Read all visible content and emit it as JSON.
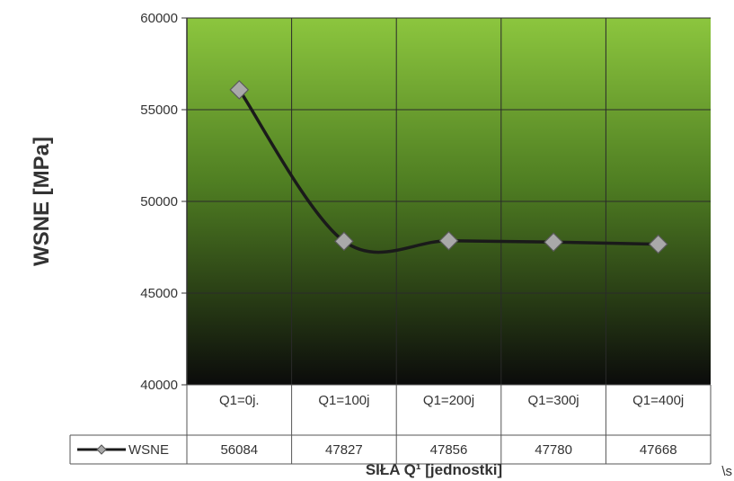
{
  "chart_data": {
    "type": "line",
    "categories": [
      "Q1=0j.",
      "Q1=100j",
      "Q1=200j",
      "Q1=300j",
      "Q1=400j"
    ],
    "series": [
      {
        "name": "WSNE",
        "values": [
          56084,
          47827,
          47856,
          47780,
          47668
        ]
      }
    ],
    "ylabel": "WSNE [MPa]",
    "xlabel": "SIŁA Q¹ [jednostki]",
    "ylim": [
      40000,
      60000
    ],
    "yticks": [
      40000,
      45000,
      50000,
      55000,
      60000
    ],
    "grid": true,
    "data_table": true,
    "legend": "data-table-row",
    "colors": {
      "line": "#1a1a1a",
      "marker": "#a9a9a9",
      "plot_top": "#8cc63e",
      "plot_bottom": "#0b0b0b"
    }
  },
  "corner_text": "\\s"
}
